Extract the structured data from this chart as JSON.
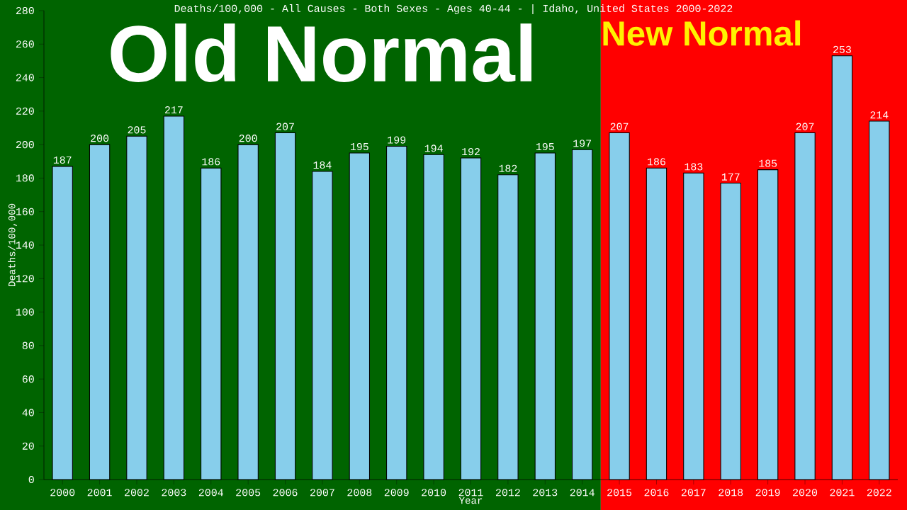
{
  "chart_data": {
    "type": "bar",
    "title": "Deaths/100,000 - All Causes - Both Sexes - Ages 40-44 -  | Idaho, United States 2000-2022",
    "xlabel": "Year",
    "ylabel": "Deaths/100,000",
    "categories": [
      "2000",
      "2001",
      "2002",
      "2003",
      "2004",
      "2005",
      "2006",
      "2007",
      "2008",
      "2009",
      "2010",
      "2011",
      "2012",
      "2013",
      "2014",
      "2015",
      "2016",
      "2017",
      "2018",
      "2019",
      "2020",
      "2021",
      "2022"
    ],
    "values": [
      187,
      200,
      205,
      217,
      186,
      200,
      207,
      184,
      195,
      199,
      194,
      192,
      182,
      195,
      197,
      207,
      186,
      183,
      177,
      185,
      207,
      253,
      214
    ],
    "color": "#87ceeb",
    "data_labels": true,
    "grid": false,
    "ylim": [
      0,
      280
    ],
    "yticks": [
      0,
      20,
      40,
      60,
      80,
      100,
      120,
      140,
      160,
      180,
      200,
      220,
      240,
      260,
      280
    ],
    "bands": [
      {
        "axis": "x",
        "from": "2000",
        "to": "2014",
        "label": "Old Normal",
        "color": "#006400"
      },
      {
        "axis": "x",
        "from": "2015",
        "to": "2022",
        "label": "New Normal",
        "color": "#ff0000"
      }
    ]
  }
}
